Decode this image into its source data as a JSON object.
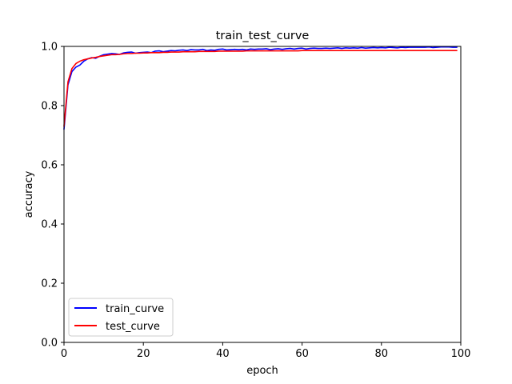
{
  "chart_data": {
    "type": "line",
    "title": "train_test_curve",
    "xlabel": "epoch",
    "ylabel": "accuracy",
    "xlim": [
      0,
      100
    ],
    "ylim": [
      0.0,
      1.0
    ],
    "x_ticks": [
      0,
      20,
      40,
      60,
      80,
      100
    ],
    "y_ticks": [
      "0.0",
      "0.2",
      "0.4",
      "0.6",
      "0.8",
      "1.0"
    ],
    "grid": false,
    "legend_position": "lower-left",
    "x": [
      0,
      1,
      2,
      3,
      4,
      5,
      6,
      7,
      8,
      9,
      10,
      11,
      12,
      13,
      14,
      15,
      16,
      17,
      18,
      19,
      20,
      21,
      22,
      23,
      24,
      25,
      26,
      27,
      28,
      29,
      30,
      31,
      32,
      33,
      34,
      35,
      36,
      37,
      38,
      39,
      40,
      41,
      42,
      43,
      44,
      45,
      46,
      47,
      48,
      49,
      50,
      51,
      52,
      53,
      54,
      55,
      56,
      57,
      58,
      59,
      60,
      61,
      62,
      63,
      64,
      65,
      66,
      67,
      68,
      69,
      70,
      71,
      72,
      73,
      74,
      75,
      76,
      77,
      78,
      79,
      80,
      81,
      82,
      83,
      84,
      85,
      86,
      87,
      88,
      89,
      90,
      91,
      92,
      93,
      94,
      95,
      96,
      97,
      98,
      99
    ],
    "series": [
      {
        "name": "train_curve",
        "color": "#0000ff",
        "values": [
          0.72,
          0.87,
          0.915,
          0.93,
          0.937,
          0.95,
          0.958,
          0.962,
          0.96,
          0.967,
          0.972,
          0.974,
          0.976,
          0.975,
          0.973,
          0.978,
          0.98,
          0.981,
          0.977,
          0.979,
          0.98,
          0.981,
          0.979,
          0.984,
          0.985,
          0.982,
          0.984,
          0.986,
          0.985,
          0.987,
          0.988,
          0.986,
          0.989,
          0.988,
          0.988,
          0.99,
          0.986,
          0.988,
          0.987,
          0.99,
          0.991,
          0.988,
          0.989,
          0.99,
          0.989,
          0.99,
          0.988,
          0.991,
          0.99,
          0.991,
          0.991,
          0.992,
          0.989,
          0.991,
          0.992,
          0.99,
          0.992,
          0.993,
          0.991,
          0.993,
          0.994,
          0.991,
          0.993,
          0.994,
          0.993,
          0.993,
          0.994,
          0.993,
          0.994,
          0.995,
          0.993,
          0.995,
          0.994,
          0.995,
          0.994,
          0.996,
          0.994,
          0.995,
          0.996,
          0.995,
          0.996,
          0.995,
          0.997,
          0.996,
          0.995,
          0.997,
          0.996,
          0.997,
          0.997,
          0.997,
          0.997,
          0.997,
          0.998,
          0.996,
          0.997,
          0.998,
          0.998,
          0.998,
          0.997,
          0.997
        ]
      },
      {
        "name": "test_curve",
        "color": "#ff0000",
        "values": [
          0.73,
          0.88,
          0.925,
          0.942,
          0.95,
          0.955,
          0.958,
          0.961,
          0.963,
          0.966,
          0.968,
          0.97,
          0.972,
          0.972,
          0.973,
          0.975,
          0.976,
          0.976,
          0.977,
          0.977,
          0.978,
          0.978,
          0.979,
          0.979,
          0.979,
          0.98,
          0.98,
          0.981,
          0.981,
          0.981,
          0.982,
          0.982,
          0.982,
          0.982,
          0.983,
          0.983,
          0.983,
          0.983,
          0.983,
          0.984,
          0.984,
          0.984,
          0.984,
          0.984,
          0.984,
          0.984,
          0.985,
          0.985,
          0.985,
          0.985,
          0.985,
          0.985,
          0.985,
          0.985,
          0.985,
          0.985,
          0.985,
          0.985,
          0.985,
          0.985,
          0.986,
          0.986,
          0.986,
          0.986,
          0.986,
          0.986,
          0.986,
          0.986,
          0.986,
          0.986,
          0.986,
          0.986,
          0.986,
          0.986,
          0.986,
          0.986,
          0.986,
          0.986,
          0.986,
          0.986,
          0.986,
          0.986,
          0.986,
          0.986,
          0.986,
          0.986,
          0.986,
          0.986,
          0.986,
          0.986,
          0.986,
          0.986,
          0.986,
          0.986,
          0.986,
          0.986,
          0.986,
          0.986,
          0.986,
          0.986
        ]
      }
    ]
  }
}
